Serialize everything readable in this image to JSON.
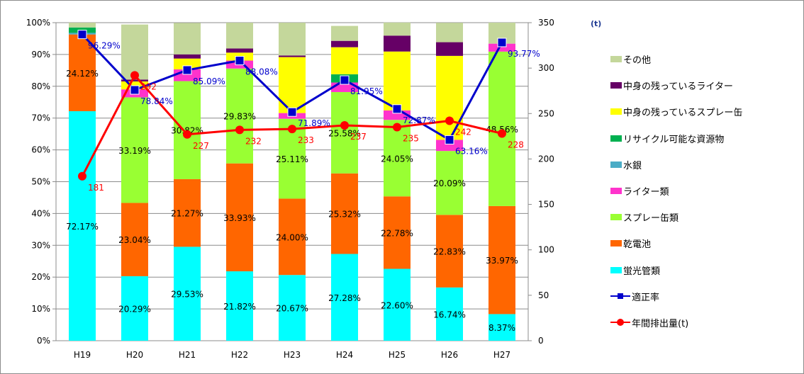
{
  "chart_data": {
    "type": "bar",
    "subtype": "stacked-percent-with-lines",
    "categories": [
      "H19",
      "H20",
      "H21",
      "H22",
      "H23",
      "H24",
      "H25",
      "H26",
      "H27"
    ],
    "y_left": {
      "range": [
        0,
        100
      ],
      "ticks": [
        "0%",
        "10%",
        "20%",
        "30%",
        "40%",
        "50%",
        "60%",
        "70%",
        "80%",
        "90%",
        "100%"
      ]
    },
    "y_right": {
      "range": [
        0,
        350
      ],
      "ticks": [
        "0",
        "50",
        "100",
        "150",
        "200",
        "250",
        "300",
        "350"
      ],
      "unit_label": "(t)"
    },
    "grid": true,
    "legend_position": "right",
    "stack_series": [
      {
        "name": "蛍光管類",
        "color": "#00FFFF",
        "values": [
          72.17,
          20.29,
          29.53,
          21.82,
          20.67,
          27.28,
          22.6,
          16.74,
          8.37
        ],
        "labels": [
          "72.17%",
          "20.29%",
          "29.53%",
          "21.82%",
          "20.67%",
          "27.28%",
          "22.60%",
          "16.74%",
          "8.37%"
        ]
      },
      {
        "name": "乾電池",
        "color": "#FF6600",
        "values": [
          24.12,
          23.04,
          21.27,
          33.93,
          24.0,
          25.32,
          22.78,
          22.83,
          33.97
        ],
        "labels": [
          "24.12%",
          "23.04%",
          "21.27%",
          "33.93%",
          "24.00%",
          "25.32%",
          "22.78%",
          "22.83%",
          "33.97%"
        ]
      },
      {
        "name": "スプレー缶類",
        "color": "#99FF33",
        "values": [
          0,
          33.19,
          30.82,
          29.83,
          25.11,
          25.58,
          24.05,
          20.09,
          48.56
        ],
        "labels": [
          "",
          "33.19%",
          "30.82%",
          "29.83%",
          "25.11%",
          "25.58%",
          "24.05%",
          "20.09%",
          "48.56%"
        ]
      },
      {
        "name": "ライター類",
        "color": "#FF33CC",
        "values": [
          0,
          2.5,
          3.7,
          2.5,
          1.8,
          3.0,
          3.0,
          3.5,
          2.5
        ],
        "labels": [
          "",
          "",
          "",
          "",
          "",
          "",
          "",
          "",
          ""
        ]
      },
      {
        "name": "水銀",
        "color": "#4BACC6",
        "values": [
          0.5,
          0,
          0,
          0,
          0,
          0,
          0,
          0,
          0
        ],
        "labels": [
          "",
          "",
          "",
          "",
          "",
          "",
          "",
          "",
          ""
        ]
      },
      {
        "name": "リサイクル可能な資源物",
        "color": "#00B050",
        "values": [
          1.7,
          0,
          0,
          0,
          0,
          2.6,
          0,
          0,
          0
        ],
        "labels": [
          "",
          "",
          "",
          "",
          "",
          "",
          "",
          "",
          ""
        ]
      },
      {
        "name": "中身の残っているスプレー缶",
        "color": "#FFFF00",
        "values": [
          0,
          2.5,
          3.4,
          2.5,
          17.6,
          8.5,
          18.5,
          26.4,
          0
        ],
        "labels": [
          "",
          "",
          "",
          "",
          "",
          "",
          "",
          "",
          ""
        ]
      },
      {
        "name": "中身の残っているライター",
        "color": "#660066",
        "values": [
          0,
          0.6,
          1.3,
          1.3,
          0.5,
          2.0,
          5.0,
          4.3,
          0
        ],
        "labels": [
          "",
          "",
          "",
          "",
          "",
          "",
          "",
          "",
          ""
        ]
      },
      {
        "name": "その他",
        "color": "#C4D79B",
        "values": [
          1.5,
          17.3,
          9.9,
          8.1,
          10.3,
          4.7,
          4.1,
          6.1,
          6.6
        ],
        "labels": [
          "",
          "",
          "",
          "",
          "",
          "",
          "",
          "",
          ""
        ]
      }
    ],
    "line_series": [
      {
        "name": "適正率",
        "axis": "left",
        "color": "#0000CC",
        "marker": "square",
        "values": [
          96.29,
          78.84,
          85.09,
          88.08,
          71.89,
          81.95,
          72.87,
          63.16,
          93.77
        ],
        "labels": [
          "96.29%",
          "78.84%",
          "85.09%",
          "88.08%",
          "71.89%",
          "81.95%",
          "72.87%",
          "63.16%",
          "93.77%"
        ]
      },
      {
        "name": "年間排出量(t)",
        "axis": "right",
        "color": "#FF0000",
        "marker": "circle",
        "values": [
          181,
          292,
          227,
          232,
          233,
          237,
          235,
          242,
          228
        ],
        "labels": [
          "181",
          "292",
          "227",
          "232",
          "233",
          "237",
          "235",
          "242",
          "228"
        ]
      }
    ],
    "legend_order": [
      "その他",
      "中身の残っているライター",
      "中身の残っているスプレー缶",
      "リサイクル可能な資源物",
      "水銀",
      "ライター類",
      "スプレー缶類",
      "乾電池",
      "蛍光管類",
      "適正率",
      "年間排出量(t)"
    ]
  }
}
